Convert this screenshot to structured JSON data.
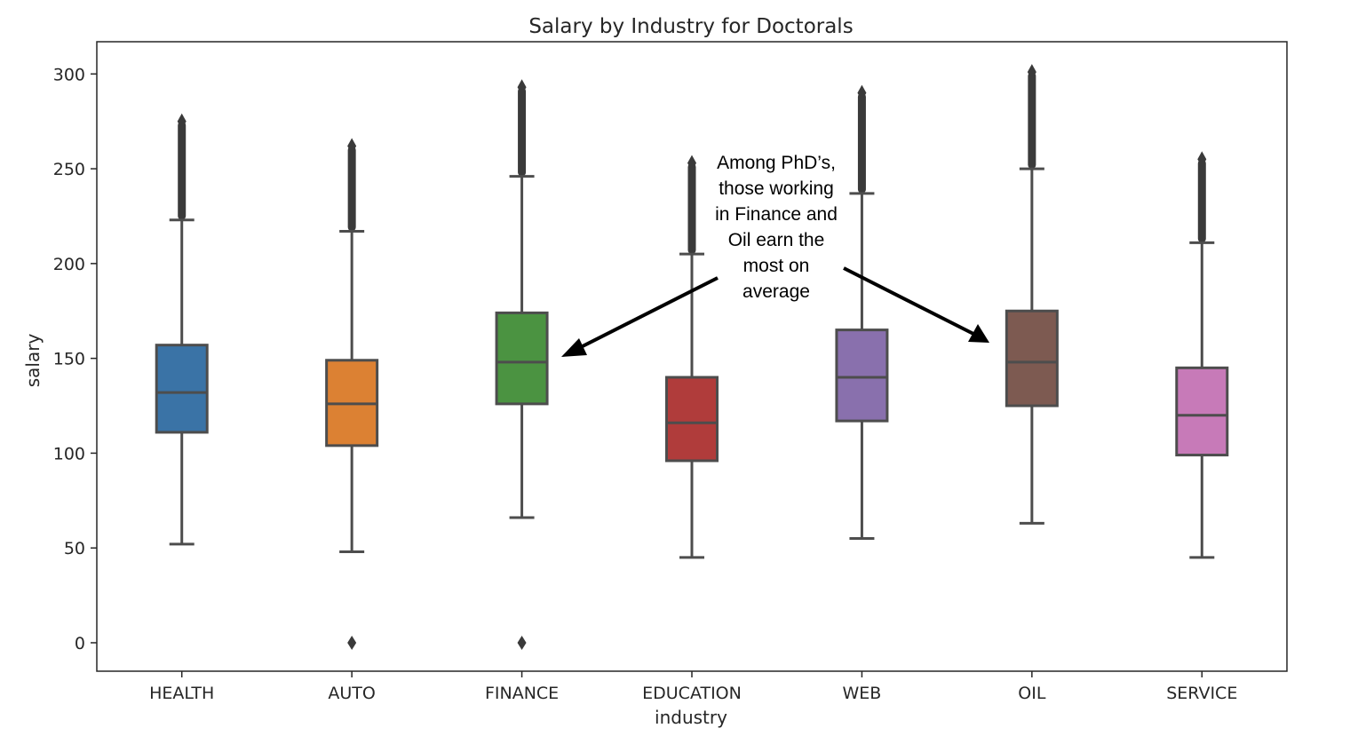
{
  "chart_data": {
    "type": "box",
    "title": "Salary by Industry for Doctorals",
    "xlabel": "industry",
    "ylabel": "salary",
    "ylim": [
      -15,
      317
    ],
    "yticks": [
      0,
      50,
      100,
      150,
      200,
      250,
      300
    ],
    "grid": false,
    "categories": [
      "HEALTH",
      "AUTO",
      "FINANCE",
      "EDUCATION",
      "WEB",
      "OIL",
      "SERVICE"
    ],
    "boxes": [
      {
        "category": "HEALTH",
        "color": "#3a73a6",
        "whisker_low": 52,
        "q1": 111,
        "median": 132,
        "q3": 157,
        "whisker_high": 223,
        "outliers_high": [
          223,
          275
        ],
        "outliers_low": []
      },
      {
        "category": "AUTO",
        "color": "#dc8133",
        "whisker_low": 48,
        "q1": 104,
        "median": 126,
        "q3": 149,
        "whisker_high": 217,
        "outliers_high": [
          217,
          262
        ],
        "outliers_low": [
          0
        ]
      },
      {
        "category": "FINANCE",
        "color": "#4b9341",
        "whisker_low": 66,
        "q1": 126,
        "median": 148,
        "q3": 174,
        "whisker_high": 246,
        "outliers_high": [
          246,
          293
        ],
        "outliers_low": [
          0
        ]
      },
      {
        "category": "EDUCATION",
        "color": "#b03c3b",
        "whisker_low": 45,
        "q1": 96,
        "median": 116,
        "q3": 140,
        "whisker_high": 205,
        "outliers_high": [
          205,
          253
        ],
        "outliers_low": []
      },
      {
        "category": "WEB",
        "color": "#8970ad",
        "whisker_low": 55,
        "q1": 117,
        "median": 140,
        "q3": 165,
        "whisker_high": 237,
        "outliers_high": [
          237,
          290
        ],
        "outliers_low": []
      },
      {
        "category": "OIL",
        "color": "#7d5a51",
        "whisker_low": 63,
        "q1": 125,
        "median": 148,
        "q3": 175,
        "whisker_high": 250,
        "outliers_high": [
          250,
          301
        ],
        "outliers_low": []
      },
      {
        "category": "SERVICE",
        "color": "#c77ab8",
        "whisker_low": 45,
        "q1": 99,
        "median": 120,
        "q3": 145,
        "whisker_high": 211,
        "outliers_high": [
          211,
          255
        ],
        "outliers_low": []
      }
    ],
    "annotation": {
      "lines": [
        "Among PhD’s,",
        "those working",
        "in Finance and",
        "Oil earn the",
        "most on",
        "average"
      ],
      "arrows_to": [
        "FINANCE",
        "OIL"
      ]
    }
  }
}
